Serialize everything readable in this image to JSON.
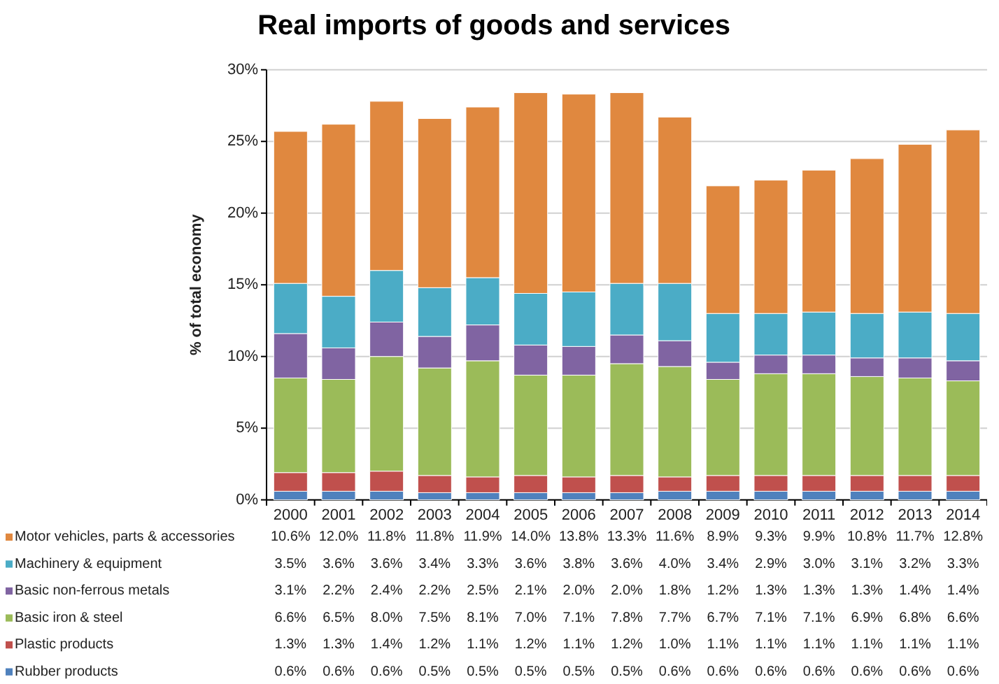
{
  "chart_data": {
    "type": "bar",
    "stacked": true,
    "title": "Real imports of goods and services",
    "ylabel": "% of total economy",
    "categories": [
      "2000",
      "2001",
      "2002",
      "2003",
      "2004",
      "2005",
      "2006",
      "2007",
      "2008",
      "2009",
      "2010",
      "2011",
      "2012",
      "2013",
      "2014"
    ],
    "series": [
      {
        "name": "Rubber products",
        "color": "#4f81bd",
        "values": [
          0.6,
          0.6,
          0.6,
          0.5,
          0.5,
          0.5,
          0.5,
          0.5,
          0.6,
          0.6,
          0.6,
          0.6,
          0.6,
          0.6,
          0.6
        ],
        "value_labels": [
          "0.6%",
          "0.6%",
          "0.6%",
          "0.5%",
          "0.5%",
          "0.5%",
          "0.5%",
          "0.5%",
          "0.6%",
          "0.6%",
          "0.6%",
          "0.6%",
          "0.6%",
          "0.6%",
          "0.6%"
        ]
      },
      {
        "name": "Plastic products",
        "color": "#c0504d",
        "values": [
          1.3,
          1.3,
          1.4,
          1.2,
          1.1,
          1.2,
          1.1,
          1.2,
          1.0,
          1.1,
          1.1,
          1.1,
          1.1,
          1.1,
          1.1
        ],
        "value_labels": [
          "1.3%",
          "1.3%",
          "1.4%",
          "1.2%",
          "1.1%",
          "1.2%",
          "1.1%",
          "1.2%",
          "1.0%",
          "1.1%",
          "1.1%",
          "1.1%",
          "1.1%",
          "1.1%",
          "1.1%"
        ]
      },
      {
        "name": "Basic iron & steel",
        "color": "#9bbb59",
        "values": [
          6.6,
          6.5,
          8.0,
          7.5,
          8.1,
          7.0,
          7.1,
          7.8,
          7.7,
          6.7,
          7.1,
          7.1,
          6.9,
          6.8,
          6.6
        ],
        "value_labels": [
          "6.6%",
          "6.5%",
          "8.0%",
          "7.5%",
          "8.1%",
          "7.0%",
          "7.1%",
          "7.8%",
          "7.7%",
          "6.7%",
          "7.1%",
          "7.1%",
          "6.9%",
          "6.8%",
          "6.6%"
        ]
      },
      {
        "name": "Basic non-ferrous metals",
        "color": "#8064a2",
        "values": [
          3.1,
          2.2,
          2.4,
          2.2,
          2.5,
          2.1,
          2.0,
          2.0,
          1.8,
          1.2,
          1.3,
          1.3,
          1.3,
          1.4,
          1.4
        ],
        "value_labels": [
          "3.1%",
          "2.2%",
          "2.4%",
          "2.2%",
          "2.5%",
          "2.1%",
          "2.0%",
          "2.0%",
          "1.8%",
          "1.2%",
          "1.3%",
          "1.3%",
          "1.3%",
          "1.4%",
          "1.4%"
        ]
      },
      {
        "name": "Machinery & equipment",
        "color": "#4bacc6",
        "values": [
          3.5,
          3.6,
          3.6,
          3.4,
          3.3,
          3.6,
          3.8,
          3.6,
          4.0,
          3.4,
          2.9,
          3.0,
          3.1,
          3.2,
          3.3
        ],
        "value_labels": [
          "3.5%",
          "3.6%",
          "3.6%",
          "3.4%",
          "3.3%",
          "3.6%",
          "3.8%",
          "3.6%",
          "4.0%",
          "3.4%",
          "2.9%",
          "3.0%",
          "3.1%",
          "3.2%",
          "3.3%"
        ]
      },
      {
        "name": "Motor vehicles, parts & accessories",
        "color": "#e0883f",
        "values": [
          10.6,
          12.0,
          11.8,
          11.8,
          11.9,
          14.0,
          13.8,
          13.3,
          11.6,
          8.9,
          9.3,
          9.9,
          10.8,
          11.7,
          12.8
        ],
        "value_labels": [
          "10.6%",
          "12.0%",
          "11.8%",
          "11.8%",
          "11.9%",
          "14.0%",
          "13.8%",
          "13.3%",
          "11.6%",
          "8.9%",
          "9.3%",
          "9.9%",
          "10.8%",
          "11.7%",
          "12.8%"
        ]
      }
    ],
    "ylim": [
      0,
      30
    ],
    "yticks": [
      {
        "value": 0,
        "label": "0%"
      },
      {
        "value": 5,
        "label": "5%"
      },
      {
        "value": 10,
        "label": "10%"
      },
      {
        "value": 15,
        "label": "15%"
      },
      {
        "value": 20,
        "label": "20%"
      },
      {
        "value": 25,
        "label": "25%"
      },
      {
        "value": 30,
        "label": "30%"
      }
    ],
    "grid": "y",
    "legend": "bottom"
  }
}
